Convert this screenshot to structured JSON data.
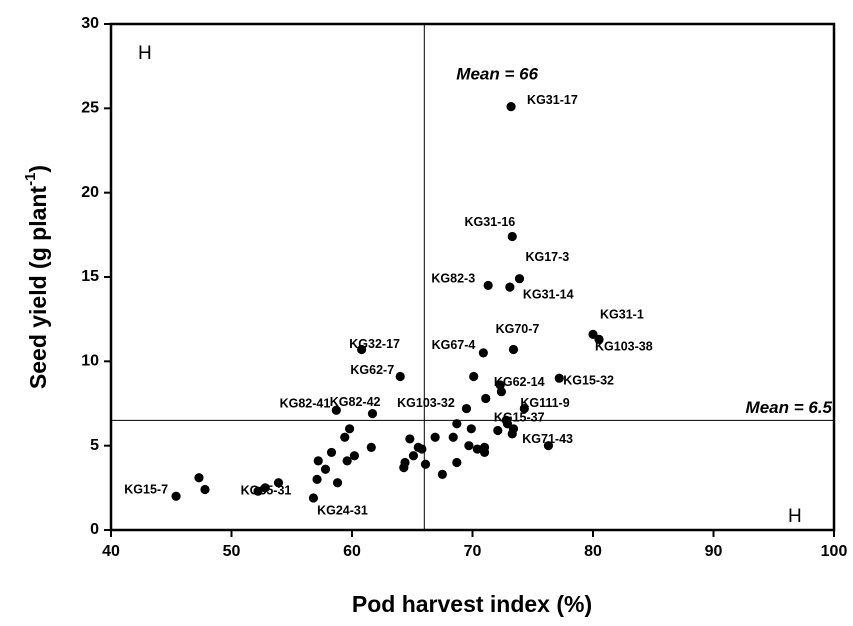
{
  "chart_data": {
    "type": "scatter",
    "xlabel": "Pod harvest index (%)",
    "ylabel": {
      "text": "Seed yield (g plant",
      "superscript": "-1",
      "suffix": ")"
    },
    "xlim": [
      40,
      100
    ],
    "xticks": [
      40,
      50,
      60,
      70,
      80,
      90,
      100
    ],
    "ylim": [
      0,
      30
    ],
    "yticks": [
      0,
      5,
      10,
      15,
      20,
      25,
      30
    ],
    "color": "#000000",
    "mean_lines": {
      "x": {
        "value": 66,
        "label": "Mean = 66"
      },
      "y": {
        "value": 6.5,
        "label": "Mean = 6.5"
      }
    },
    "annotations": [
      "H",
      "H"
    ],
    "x": [
      45.4,
      47.3,
      47.8,
      52.2,
      52.8,
      53.9,
      56.8,
      57.1,
      57.2,
      57.8,
      58.3,
      58.7,
      58.8,
      59.4,
      59.6,
      59.8,
      60.2,
      60.8,
      61.6,
      61.7,
      64.0,
      64.3,
      64.4,
      64.8,
      65.1,
      65.5,
      65.8,
      66.1,
      66.9,
      67.5,
      68.4,
      68.7,
      68.7,
      69.5,
      69.7,
      69.9,
      70.1,
      70.4,
      70.9,
      71.0,
      71.0,
      71.1,
      71.3,
      72.1,
      72.3,
      72.4,
      72.8,
      72.9,
      73.1,
      73.2,
      73.3,
      73.3,
      73.4,
      73.4,
      73.9,
      74.3,
      76.3,
      77.2,
      80.0,
      80.5
    ],
    "y": [
      2.0,
      3.1,
      2.4,
      2.3,
      2.5,
      2.8,
      1.9,
      3.0,
      4.1,
      3.6,
      4.6,
      7.1,
      2.8,
      5.5,
      4.1,
      6.0,
      4.4,
      10.7,
      4.9,
      6.9,
      9.1,
      3.7,
      4.0,
      5.4,
      4.4,
      4.9,
      4.8,
      3.9,
      5.5,
      3.3,
      5.5,
      4.0,
      6.3,
      7.2,
      5.0,
      6.0,
      9.1,
      4.8,
      10.5,
      4.6,
      4.9,
      7.8,
      14.5,
      5.9,
      8.6,
      8.2,
      6.5,
      6.3,
      14.4,
      25.1,
      17.4,
      5.7,
      10.7,
      6.0,
      14.9,
      7.2,
      5.0,
      9.0,
      11.6,
      11.3
    ],
    "point_labels": [
      "KG15-7",
      null,
      null,
      "KG35-31",
      null,
      null,
      "KG24-31",
      null,
      null,
      null,
      null,
      "KG82-41",
      null,
      null,
      null,
      null,
      null,
      "KG32-17",
      null,
      "KG82-42",
      "KG62-7",
      null,
      null,
      null,
      null,
      null,
      null,
      null,
      null,
      null,
      null,
      null,
      "KG103-32",
      null,
      null,
      null,
      null,
      null,
      "KG67-4",
      null,
      null,
      null,
      "KG82-3",
      null,
      "KG62-14",
      null,
      "KG15-37",
      null,
      "KG31-14",
      "KG31-17",
      "KG31-16",
      "KG71-43",
      "KG70-7",
      null,
      "KG17-3",
      "KG111-9",
      null,
      "KG15-32",
      "KG31-1",
      "KG103-38"
    ]
  }
}
